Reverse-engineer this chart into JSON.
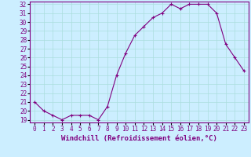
{
  "x": [
    0,
    1,
    2,
    3,
    4,
    5,
    6,
    7,
    8,
    9,
    10,
    11,
    12,
    13,
    14,
    15,
    16,
    17,
    18,
    19,
    20,
    21,
    22,
    23
  ],
  "y": [
    21,
    20,
    19.5,
    19,
    19.5,
    19.5,
    19.5,
    19,
    20.5,
    24,
    26.5,
    28.5,
    29.5,
    30.5,
    31,
    32,
    31.5,
    32,
    32,
    32,
    31,
    27.5,
    26,
    24.5
  ],
  "line_color": "#800080",
  "marker": "+",
  "marker_color": "#800080",
  "bg_color": "#cceeff",
  "grid_color": "#aadddd",
  "xlabel": "Windchill (Refroidissement éolien,°C)",
  "xlim": [
    -0.5,
    23.5
  ],
  "ylim": [
    18.7,
    32.3
  ],
  "yticks": [
    19,
    20,
    21,
    22,
    23,
    24,
    25,
    26,
    27,
    28,
    29,
    30,
    31,
    32
  ],
  "xticks": [
    0,
    1,
    2,
    3,
    4,
    5,
    6,
    7,
    8,
    9,
    10,
    11,
    12,
    13,
    14,
    15,
    16,
    17,
    18,
    19,
    20,
    21,
    22,
    23
  ],
  "xlabel_fontsize": 6.5,
  "tick_fontsize": 5.5,
  "line_width": 0.8,
  "marker_size": 3
}
